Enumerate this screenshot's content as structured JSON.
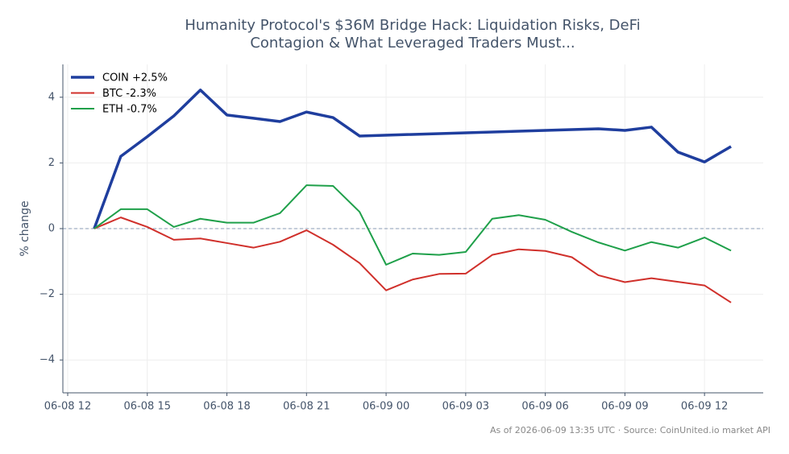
{
  "chart_data": {
    "type": "line",
    "title": "Humanity Protocol's $36M Bridge Hack: Liquidation Risks, DeFi Contagion & What Leveraged Traders Must...",
    "y_label": "% change",
    "footer": "As of 2026-06-09 13:35 UTC · Source: CoinUnited.io market API",
    "x": [
      "06-08 13",
      "06-08 14",
      "06-08 15",
      "06-08 16",
      "06-08 17",
      "06-08 18",
      "06-08 19",
      "06-08 20",
      "06-08 21",
      "06-08 22",
      "06-08 23",
      "06-09 00",
      "06-09 01",
      "06-09 02",
      "06-09 03",
      "06-09 04",
      "06-09 05",
      "06-09 06",
      "06-09 07",
      "06-09 08",
      "06-09 09",
      "06-09 10",
      "06-09 11",
      "06-09 12",
      "06-09 13"
    ],
    "series": [
      {
        "name": "COIN +2.5%",
        "color": "#1f3e9e",
        "width": 3.5,
        "x": [
          "06-08 13",
          "06-08 14",
          "06-08 15",
          "06-08 16",
          "06-08 17",
          "06-08 18",
          "06-08 19",
          "06-08 20",
          "06-08 21",
          "06-08 22",
          "06-08 23",
          "06-09 08",
          "06-09 09",
          "06-09 10",
          "06-09 11",
          "06-09 12",
          "06-09 13"
        ],
        "values": [
          0,
          2.2,
          2.8,
          3.43,
          4.22,
          3.46,
          3.36,
          3.26,
          3.55,
          3.38,
          2.82,
          3.04,
          2.99,
          3.09,
          2.33,
          2.03,
          2.5
        ]
      },
      {
        "name": "BTC -2.3%",
        "color": "#d0302b",
        "width": 2,
        "values": [
          0,
          0.34,
          0.05,
          -0.34,
          -0.3,
          -0.44,
          -0.58,
          -0.4,
          -0.05,
          -0.49,
          -1.05,
          -1.88,
          -1.55,
          -1.38,
          -1.37,
          -0.8,
          -0.63,
          -0.68,
          -0.87,
          -1.42,
          -1.63,
          -1.51,
          -1.62,
          -1.73,
          -2.25
        ]
      },
      {
        "name": "ETH -0.7%",
        "color": "#1fa04a",
        "width": 2,
        "values": [
          0,
          0.59,
          0.59,
          0.05,
          0.3,
          0.18,
          0.18,
          0.47,
          1.32,
          1.3,
          0.51,
          -1.1,
          -0.76,
          -0.8,
          -0.71,
          0.3,
          0.41,
          0.27,
          -0.1,
          -0.42,
          -0.67,
          -0.41,
          -0.58,
          -0.27,
          -0.67
        ]
      }
    ],
    "xlim": [
      "06-08 12",
      "06-09 14"
    ],
    "xticks": [
      "06-08 12",
      "06-08 15",
      "06-08 18",
      "06-08 21",
      "06-09 00",
      "06-09 03",
      "06-09 06",
      "06-09 09",
      "06-09 12"
    ],
    "ylim": [
      -5,
      5
    ],
    "yticks": [
      {
        "value": -4,
        "label": "−4"
      },
      {
        "value": -2,
        "label": "−2"
      },
      0,
      2,
      4
    ],
    "grid": true,
    "legend": "upper-left"
  }
}
